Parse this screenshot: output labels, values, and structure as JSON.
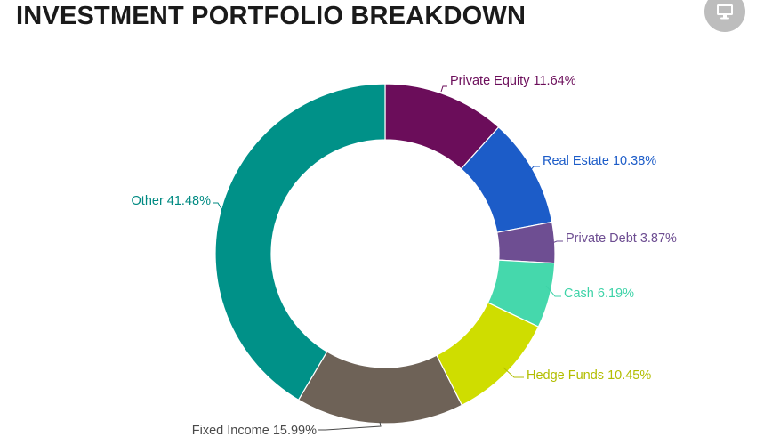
{
  "header": {
    "title": "INVESTMENT PORTFOLIO BREAKDOWN",
    "monitor_icon": "monitor-icon"
  },
  "chart_data": {
    "type": "pie",
    "variant": "donut",
    "title": "INVESTMENT PORTFOLIO BREAKDOWN",
    "slices": [
      {
        "name": "Private Equity",
        "value": 11.64,
        "label": "Private Equity 11.64%",
        "color": "#6b0d5a"
      },
      {
        "name": "Real Estate",
        "value": 10.38,
        "label": "Real Estate 10.38%",
        "color": "#1c5cc8"
      },
      {
        "name": "Private Debt",
        "value": 3.87,
        "label": "Private Debt 3.87%",
        "color": "#6e4e92"
      },
      {
        "name": "Cash",
        "value": 6.19,
        "label": "Cash 6.19%",
        "color": "#45d8ac"
      },
      {
        "name": "Hedge Funds",
        "value": 10.45,
        "label": "Hedge Funds 10.45%",
        "color": "#cfdd00"
      },
      {
        "name": "Fixed Income",
        "value": 15.99,
        "label": "Fixed Income 15.99%",
        "color": "#6e6257"
      },
      {
        "name": "Other",
        "value": 41.48,
        "label": "Other 41.48%",
        "color": "#009188"
      }
    ],
    "label_colors": [
      "#6b0d5a",
      "#1c5cc8",
      "#6e4e92",
      "#3ed3a8",
      "#b2be00",
      "#4a4a4a",
      "#008a82"
    ],
    "legend": false
  }
}
